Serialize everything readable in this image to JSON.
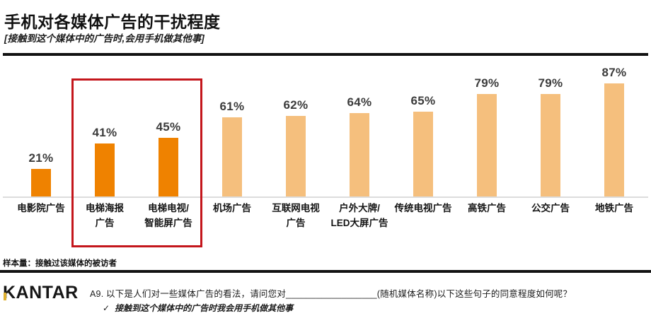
{
  "header": {
    "title": "手机对各媒体广告的干扰程度",
    "subtitle": "[接触到这个媒体中的广告时,会用手机做其他事]"
  },
  "chart_data": {
    "type": "bar",
    "categories": [
      "电影院广告",
      "电梯海报\n广告",
      "电梯电视/\n智能屏广告",
      "机场广告",
      "互联网电视\n广告",
      "户外大牌/\nLED大屏广告",
      "传统电视广告",
      "高铁广告",
      "公交广告",
      "地铁广告"
    ],
    "values": [
      21,
      41,
      45,
      61,
      62,
      64,
      65,
      79,
      79,
      87
    ],
    "unit": "%",
    "title": "手机对各媒体广告的干扰程度",
    "xlabel": "",
    "ylabel": "",
    "ylim": [
      0,
      100
    ],
    "grid": false,
    "legend": "none",
    "bar_color_dark": "#ef8200",
    "bar_color_light": "#f5bf7d",
    "dark_bar_indices": [
      0,
      1,
      2
    ],
    "highlight": {
      "indices": [
        1,
        2
      ],
      "box_color": "#c4161c"
    }
  },
  "footnote": {
    "sample_note": "样本量：接触过该媒体的被访者"
  },
  "footer": {
    "logo_text": "KANTAR",
    "question": "A9. 以下是人们对一些媒体广告的看法，请问您对__________________(随机媒体名称)以下这些句子的同意程度如何呢？",
    "check_icon": "✓",
    "statement": "接触到这个媒体中的广告时我会用手机做其他事"
  }
}
